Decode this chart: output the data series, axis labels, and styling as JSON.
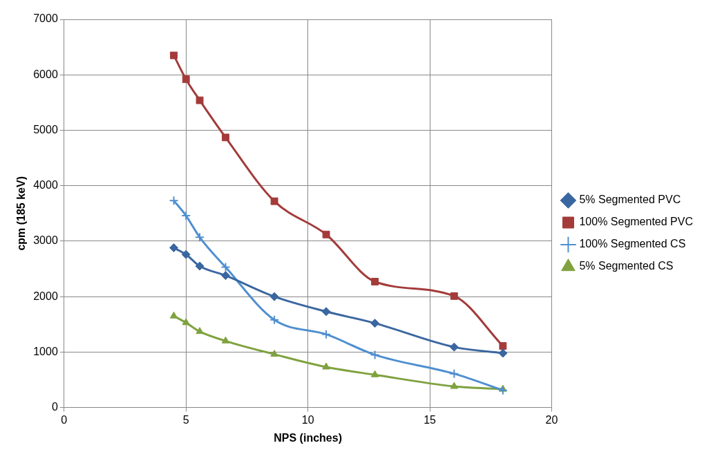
{
  "chart_data": {
    "type": "line",
    "xlabel": "NPS (inches)",
    "ylabel": "cpm (185 keV)",
    "x": [
      4.5,
      5,
      5.563,
      6.625,
      8.625,
      10.75,
      12.75,
      16,
      18
    ],
    "series": [
      {
        "name": "5% Segmented PVC",
        "color": "#3a67a0",
        "marker": "diamond",
        "values": [
          2880,
          2760,
          2550,
          2380,
          2000,
          1730,
          1520,
          1090,
          980
        ]
      },
      {
        "name": "100% Segmented PVC",
        "color": "#a33b3a",
        "marker": "square",
        "values": [
          6350,
          5920,
          5540,
          4870,
          3720,
          3120,
          2270,
          2010,
          1110
        ]
      },
      {
        "name": "100% Segmented CS",
        "color": "#4f8fd0",
        "marker": "cross",
        "values": [
          3730,
          3460,
          3070,
          2530,
          1580,
          1320,
          950,
          610,
          310
        ]
      },
      {
        "name": "5% Segmented CS",
        "color": "#7fa23f",
        "marker": "triangle",
        "values": [
          1650,
          1530,
          1370,
          1200,
          960,
          730,
          590,
          380,
          330
        ]
      }
    ],
    "xlim": [
      0,
      20
    ],
    "xticks": [
      0,
      5,
      10,
      15,
      20
    ],
    "ylim": [
      0,
      7000
    ],
    "yticks": [
      0,
      1000,
      2000,
      3000,
      4000,
      5000,
      6000,
      7000
    ],
    "grid": true,
    "legend": "right",
    "line_style": "solid"
  }
}
